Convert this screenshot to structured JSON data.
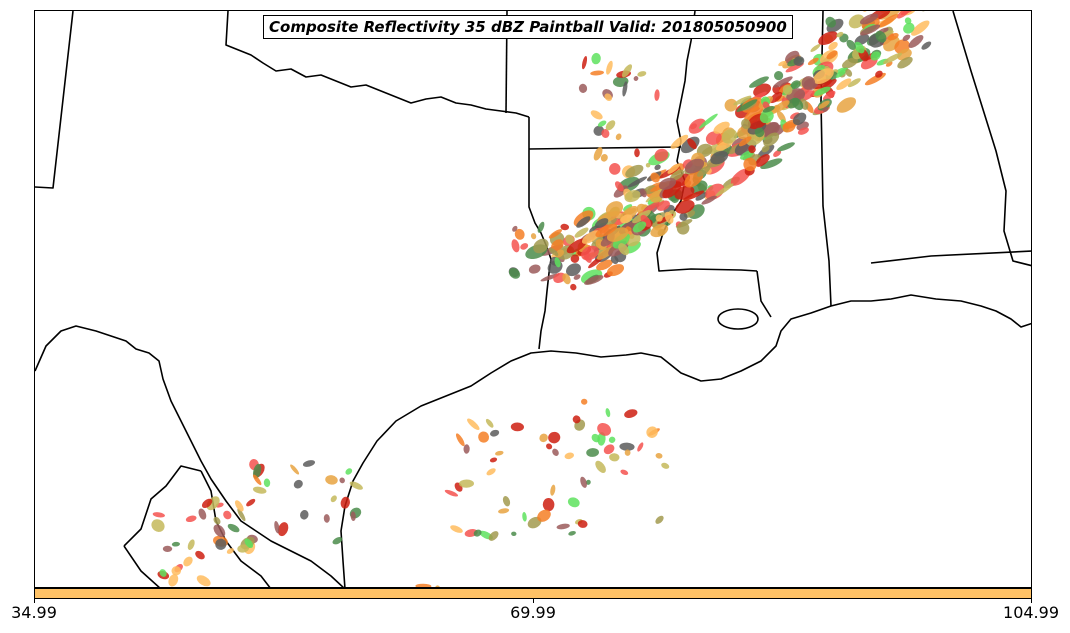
{
  "map": {
    "title": "Composite Reflectivity 35 dBZ Paintball Valid: 201805050900",
    "region": "South-Central United States and Gulf of Mexico",
    "member_colors": [
      "#f4524f",
      "#e8a341",
      "#f57f26",
      "#ce1f10",
      "#5ee25e",
      "#4b8c4b",
      "#9b5a5a",
      "#a29a4f",
      "#5c5c5c",
      "#ffbc5e",
      "#c4b85a"
    ]
  },
  "colorbar": {
    "color": "#ffc266",
    "ticks": [
      "34.99",
      "69.99",
      "104.99"
    ]
  }
}
